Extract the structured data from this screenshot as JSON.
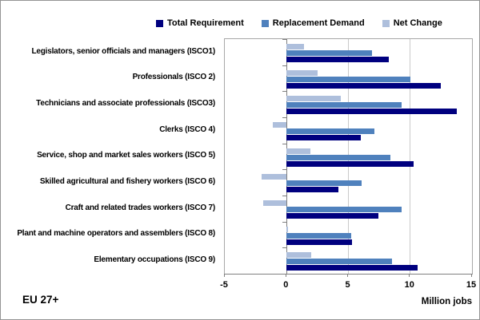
{
  "chart_data": {
    "type": "bar",
    "orientation": "horizontal",
    "title": "",
    "xlabel": "Million jobs",
    "region_label": "EU 27+",
    "xlim": [
      -5,
      15
    ],
    "x_ticks": [
      -5,
      0,
      5,
      10,
      15
    ],
    "grid": true,
    "legend_position": "top",
    "legend": [
      "Total Requirement",
      "Replacement Demand",
      "Net Change"
    ],
    "categories": [
      "Legislators, senior officials and managers (ISCO1)",
      "Professionals (ISCO 2)",
      "Technicians and associate professionals (ISCO3)",
      "Clerks (ISCO 4)",
      "Service, shop and market sales workers (ISCO 5)",
      "Skilled agricultural and fishery workers (ISCO 6)",
      "Craft and related trades workers (ISCO 7)",
      "Plant and machine operators and assemblers (ISCO 8)",
      "Elementary occupations (ISCO 9)"
    ],
    "series": [
      {
        "name": "Total Requirement",
        "color": "#00007F",
        "values": [
          8.3,
          12.5,
          13.8,
          6.0,
          10.3,
          4.2,
          7.4,
          5.3,
          10.6
        ]
      },
      {
        "name": "Replacement Demand",
        "color": "#4F81BD",
        "values": [
          6.9,
          10.0,
          9.3,
          7.1,
          8.4,
          6.1,
          9.3,
          5.2,
          8.5
        ]
      },
      {
        "name": "Net Change",
        "color": "#AEBFDC",
        "values": [
          1.4,
          2.5,
          4.4,
          -1.1,
          1.9,
          -2.0,
          -1.9,
          0.1,
          2.0
        ]
      }
    ],
    "colors": {
      "grid": "#c9c9c9",
      "axis": "#7f7f7f",
      "plot_border": "#a8a8a8"
    }
  }
}
